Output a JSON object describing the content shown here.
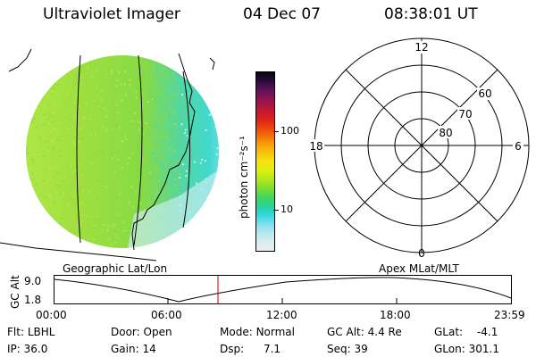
{
  "title": {
    "instrument": "Ultraviolet Imager",
    "date": "04 Dec 07",
    "time": "08:38:01 UT"
  },
  "colorbar": {
    "label": "photon cm⁻²s⁻¹",
    "ticks": [
      "100",
      "10"
    ],
    "colors": [
      "#ececec",
      "#d8eef2",
      "#b8e8ee",
      "#7fdff0",
      "#35d6e0",
      "#28d39a",
      "#42d65a",
      "#7ede34",
      "#b2e81c",
      "#ddee12",
      "#f7e30e",
      "#f9c20c",
      "#f89c0b",
      "#f2690a",
      "#e8390f",
      "#d51f1f",
      "#b8173d",
      "#8e1450",
      "#5f1258",
      "#2a0b3f",
      "#06060a"
    ]
  },
  "image_panel": {
    "colors": {
      "green": "#92dc3e",
      "lightgreen": "#b3e64a",
      "cyan": "#3fd9cf",
      "pale": "#c8ecf0"
    }
  },
  "polar_plot": {
    "mlt_labels": [
      "12",
      "18",
      "6",
      "0"
    ],
    "lat_labels": [
      "60",
      "70",
      "80"
    ]
  },
  "panel_labels": {
    "left": "Geographic Lat/Lon",
    "right": "Apex MLat/MLT"
  },
  "alt_plot": {
    "ylabel": "GC Alt",
    "yticks": [
      "9.0",
      "1.8"
    ],
    "xticks": [
      "00:00",
      "06:00",
      "12:00",
      "18:00",
      "23:59"
    ],
    "marker_color": "#cc0000"
  },
  "info": {
    "row1": [
      {
        "k": "Flt:",
        "v": "LBHL"
      },
      {
        "k": "Door:",
        "v": "Open"
      },
      {
        "k": "Mode:",
        "v": "Normal"
      },
      {
        "k": "GC Alt:",
        "v": "4.4 Re"
      },
      {
        "k": "GLat:",
        "v": "-4.1"
      }
    ],
    "row2": [
      {
        "k": "IP:",
        "v": "36.0"
      },
      {
        "k": "Gain:",
        "v": "14"
      },
      {
        "k": "Dsp:",
        "v": "7.1"
      },
      {
        "k": "Seq:",
        "v": "39"
      },
      {
        "k": "GLon:",
        "v": "301.1"
      }
    ]
  }
}
